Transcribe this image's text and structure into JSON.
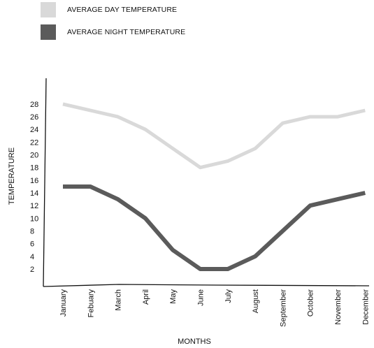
{
  "chart_data": {
    "type": "line",
    "categories": [
      "January",
      "Febuary",
      "March",
      "April",
      "May",
      "June",
      "July",
      "August",
      "September",
      "October",
      "November",
      "December"
    ],
    "series": [
      {
        "name": "AVERAGE DAY TEMPERATURE",
        "color": "#d9d9d9",
        "values": [
          28,
          27,
          26,
          24,
          21,
          18,
          19,
          21,
          25,
          26,
          26,
          27
        ]
      },
      {
        "name": "AVERAGE NIGHT TEMPERATURE",
        "color": "#5b5b5b",
        "values": [
          15,
          15,
          13,
          10,
          5,
          2,
          2,
          4,
          8,
          12,
          13,
          14
        ]
      }
    ],
    "yticks": [
      2,
      4,
      6,
      8,
      10,
      12,
      14,
      16,
      18,
      20,
      22,
      24,
      26,
      28
    ],
    "xlabel": "MONTHS",
    "ylabel": "TEMPERATURE",
    "legend_position": "top-left",
    "grid": false
  }
}
